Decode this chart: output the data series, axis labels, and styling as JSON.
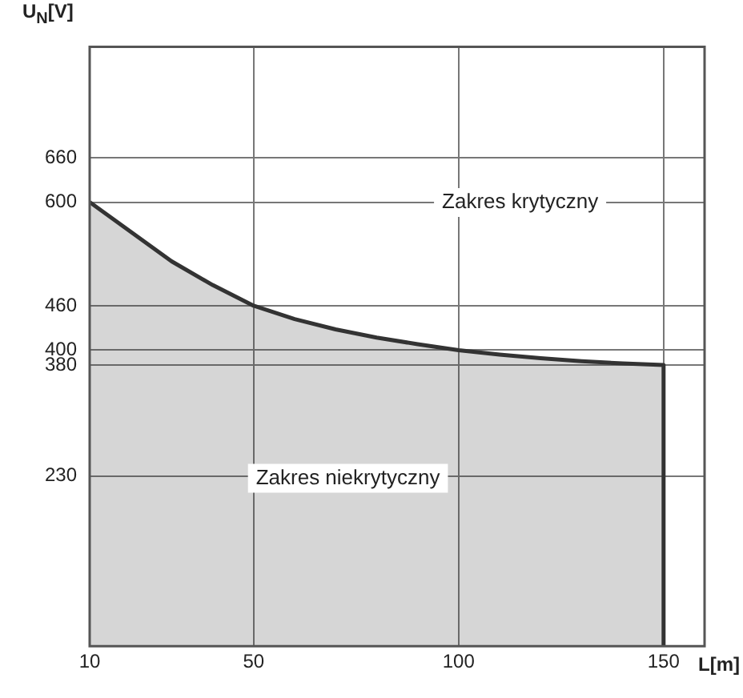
{
  "chart_data": {
    "type": "area",
    "ylabel": "U$_{N}$[V]",
    "xlabel": "L[m]",
    "x": [
      10,
      20,
      30,
      40,
      50,
      60,
      70,
      80,
      90,
      100,
      110,
      120,
      130,
      140,
      150,
      150
    ],
    "series": [
      {
        "color": "#333333",
        "values": [
          600,
          560,
          520,
          488,
          460,
          442,
          428,
          417,
          408,
          400,
          394,
          389,
          385,
          382,
          380,
          0
        ]
      }
    ],
    "xlim": [
      10,
      160
    ],
    "xticks": [
      10,
      50,
      100,
      150
    ],
    "ylim": [
      0,
      810
    ],
    "yticks": [
      230,
      380,
      400,
      460,
      600,
      660
    ],
    "grid": true,
    "legend": false,
    "marker": "none",
    "annotations": [
      "Zakres krytyczny",
      "Zakres niekrytyczny"
    ]
  }
}
